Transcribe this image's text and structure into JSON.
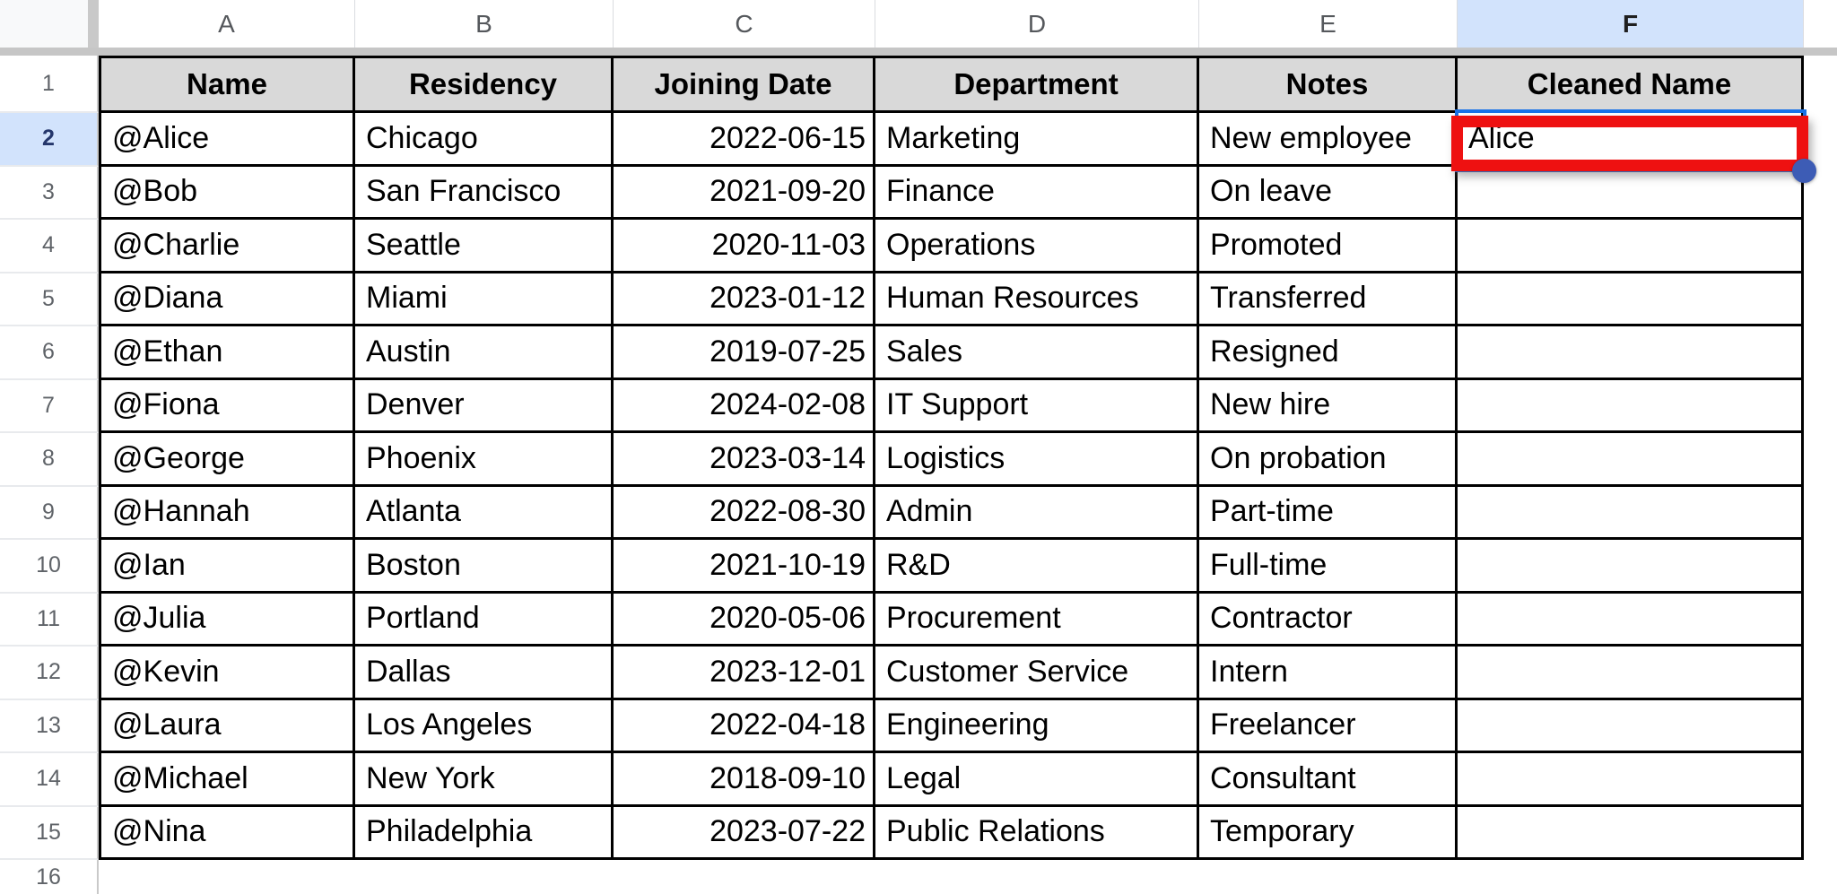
{
  "sheet": {
    "column_letters": [
      "A",
      "B",
      "C",
      "D",
      "E",
      "F"
    ],
    "selected_column": "F",
    "row_numbers": [
      "1",
      "2",
      "3",
      "4",
      "5",
      "6",
      "7",
      "8",
      "9",
      "10",
      "11",
      "12",
      "13",
      "14",
      "15",
      "16"
    ],
    "selected_row": "2",
    "table": {
      "headers": [
        "Name",
        "Residency",
        "Joining Date",
        "Department",
        "Notes",
        "Cleaned Name"
      ],
      "rows": [
        [
          "@Alice",
          "Chicago",
          "2022-06-15",
          "Marketing",
          "New employee",
          "Alice"
        ],
        [
          "@Bob",
          "San Francisco",
          "2021-09-20",
          "Finance",
          "On leave",
          ""
        ],
        [
          "@Charlie",
          "Seattle",
          "2020-11-03",
          "Operations",
          "Promoted",
          ""
        ],
        [
          "@Diana",
          "Miami",
          "2023-01-12",
          "Human Resources",
          "Transferred",
          ""
        ],
        [
          "@Ethan",
          "Austin",
          "2019-07-25",
          "Sales",
          "Resigned",
          ""
        ],
        [
          "@Fiona",
          "Denver",
          "2024-02-08",
          "IT Support",
          "New hire",
          ""
        ],
        [
          "@George",
          "Phoenix",
          "2023-03-14",
          "Logistics",
          "On probation",
          ""
        ],
        [
          "@Hannah",
          "Atlanta",
          "2022-08-30",
          "Admin",
          "Part-time",
          ""
        ],
        [
          "@Ian",
          "Boston",
          "2021-10-19",
          "R&D",
          "Full-time",
          ""
        ],
        [
          "@Julia",
          "Portland",
          "2020-05-06",
          "Procurement",
          "Contractor",
          ""
        ],
        [
          "@Kevin",
          "Dallas",
          "2023-12-01",
          "Customer Service",
          "Intern",
          ""
        ],
        [
          "@Laura",
          "Los Angeles",
          "2022-04-18",
          "Engineering",
          "Freelancer",
          ""
        ],
        [
          "@Michael",
          "New York",
          "2018-09-10",
          "Legal",
          "Consultant",
          ""
        ],
        [
          "@Nina",
          "Philadelphia",
          "2023-07-22",
          "Public Relations",
          "Temporary",
          ""
        ]
      ]
    },
    "selection": {
      "cell_ref": "F2",
      "value": "Alice"
    },
    "colors": {
      "selection_blue": "#1a73e8",
      "annotation_red": "#ee1111",
      "fill_handle_blue": "#3d5cb5",
      "header_row_fill": "#d9d9d9",
      "selected_header_fill": "#d2e3fc",
      "grid_border": "#000000"
    }
  }
}
